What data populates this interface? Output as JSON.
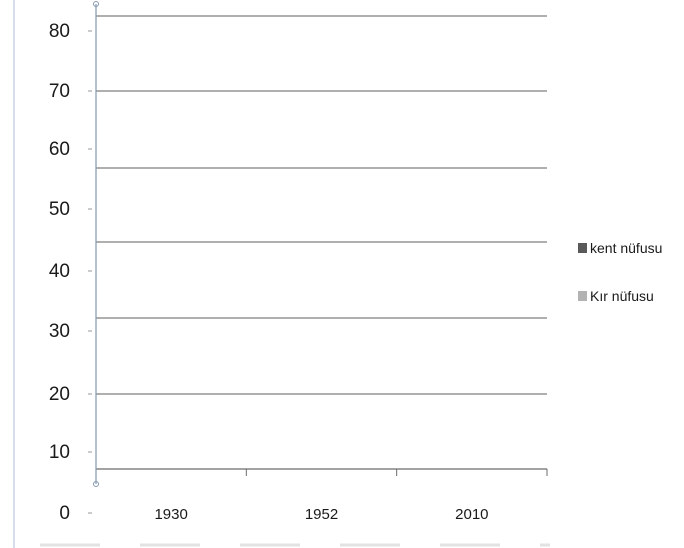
{
  "chart_data": {
    "type": "bar",
    "categories": [
      "1930",
      "1952",
      "2010"
    ],
    "series": [
      {
        "name": "kent nüfusu",
        "values": [
          null,
          null,
          null
        ],
        "color": "#595959"
      },
      {
        "name": "Kır nüfusu",
        "values": [
          null,
          null,
          null
        ],
        "color": "#b3b3b3"
      }
    ],
    "y_ticks": [
      "0",
      "10",
      "20",
      "30",
      "40",
      "50",
      "60",
      "70",
      "80"
    ],
    "ylim": [
      0,
      80
    ],
    "grid": true,
    "legend": "right",
    "gridline_color": "#7f7f7f",
    "axis_color": "#8497b0"
  }
}
